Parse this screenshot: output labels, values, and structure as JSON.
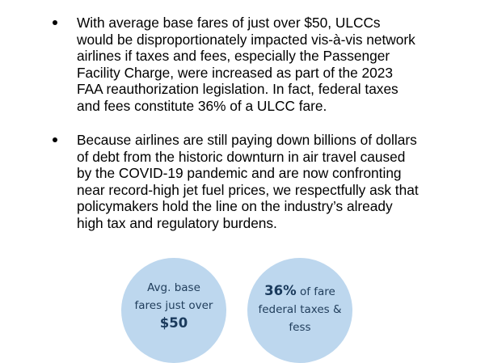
{
  "bullets": [
    {
      "lines": [
        "With average base fares of just over $50, ULCCs",
        "would be disproportionately impacted vis-à-vis network",
        "airlines if taxes and fees, especially the Passenger",
        "Facility Charge, were increased as part of the 2023",
        "FAA reauthorization legislation. In fact, federal taxes",
        "and fees constitute 36% of a ULCC fare."
      ]
    },
    {
      "lines": [
        "Because airlines are still paying down billions of dollars",
        "of debt from the historic downturn in air travel caused",
        "by the COVID-19 pandemic and are now confronting",
        "near record-high jet fuel prices, we respectfully ask that",
        "policymakers hold the line on the industry’s already",
        "high tax and regulatory burdens."
      ]
    }
  ],
  "callouts": {
    "left": {
      "line1": "Avg. base",
      "line2": "fares just over",
      "value": "$50"
    },
    "right": {
      "value": "36%",
      "suffix": " of fare",
      "line2": "federal taxes &",
      "line3": "fess"
    }
  },
  "colors": {
    "circle_fill": "#bdd7ee",
    "circle_text": "#1f3c5a"
  }
}
